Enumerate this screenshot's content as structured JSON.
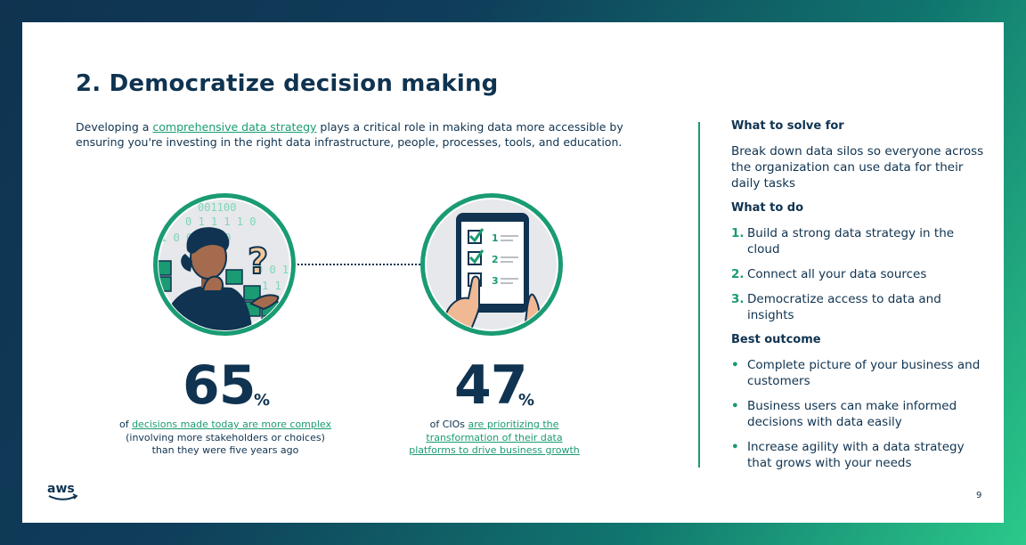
{
  "title": "2. Democratize decision making",
  "intro": {
    "before": "Developing a ",
    "link": "comprehensive data strategy",
    "after": " plays a critical role in making data more accessible by ensuring you're investing in the right data infrastructure, people, processes, tools, and education."
  },
  "stats": [
    {
      "number": "65",
      "unit": "%",
      "prefix": "of ",
      "link": "decisions made today are more complex",
      "suffix": " (involving more stakeholders or choices) than they were five years ago"
    },
    {
      "number": "47",
      "unit": "%",
      "prefix": "of CIOs ",
      "link": "are prioritizing the transformation of their data platforms to drive business growth",
      "suffix": ""
    }
  ],
  "illustrations": {
    "binary_rows": [
      "001100",
      "0 1 1 1 1 0",
      "1 0   0 1 1 0",
      "0 0 1 1",
      "1 1 0 1"
    ],
    "checklist_numbers": [
      "1",
      "2",
      "3"
    ],
    "question_mark": "?"
  },
  "sidebar": {
    "solve_heading": "What to solve for",
    "solve_text": "Break down data silos so everyone across the organization can use data for their daily tasks",
    "todo_heading": "What to do",
    "todo": [
      {
        "marker": "1.",
        "text": "Build a strong data strategy in the cloud"
      },
      {
        "marker": "2.",
        "text": "Connect all your data sources"
      },
      {
        "marker": "3.",
        "text": "Democratize access to data and insights"
      }
    ],
    "outcome_heading": "Best outcome",
    "outcomes": [
      {
        "marker": "•",
        "text": "Complete picture of your business and customers"
      },
      {
        "marker": "•",
        "text": "Business users can make informed decisions with data easily"
      },
      {
        "marker": "•",
        "text": "Increase agility with a data strategy that grows with your needs"
      }
    ]
  },
  "footer": {
    "logo_text": "aws",
    "page_number": "9"
  },
  "colors": {
    "navy": "#0f3350",
    "accent_green": "#1a9b73",
    "circle_fill": "#e6e8eb"
  }
}
